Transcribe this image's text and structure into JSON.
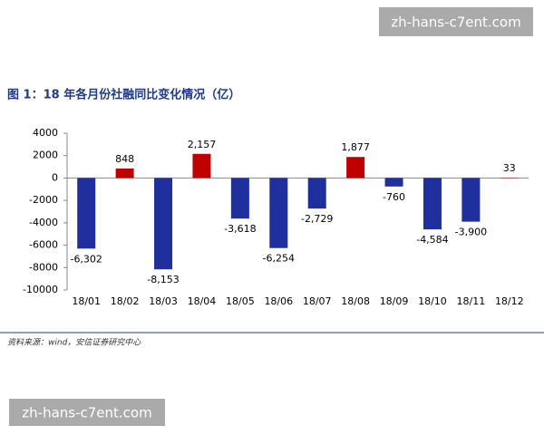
{
  "watermarks": [
    "zh-hans-c7ent.com",
    "zh-hans-c7ent.com"
  ],
  "chart_data": {
    "type": "bar",
    "title": "图 1：18 年各月份社融同比变化情况（亿）",
    "source": "资料来源：wind，安信证券研究中心",
    "categories": [
      "18/01",
      "18/02",
      "18/03",
      "18/04",
      "18/05",
      "18/06",
      "18/07",
      "18/08",
      "18/09",
      "18/10",
      "18/11",
      "18/12"
    ],
    "values": [
      -6302,
      848,
      -8153,
      2157,
      -3618,
      -6254,
      -2729,
      1877,
      -760,
      -4584,
      -3900,
      33
    ],
    "value_labels": [
      "-6,302",
      "848",
      "-8,153",
      "2,157",
      "-3,618",
      "-6,254",
      "-2,729",
      "1,877",
      "-760",
      "-4,584",
      "-3,900",
      "33"
    ],
    "positive_color": "#c00000",
    "negative_color": "#1f2f9e",
    "ylim": [
      -10000,
      4000
    ],
    "yticks": [
      -10000,
      -8000,
      -6000,
      -4000,
      -2000,
      0,
      2000,
      4000
    ]
  }
}
